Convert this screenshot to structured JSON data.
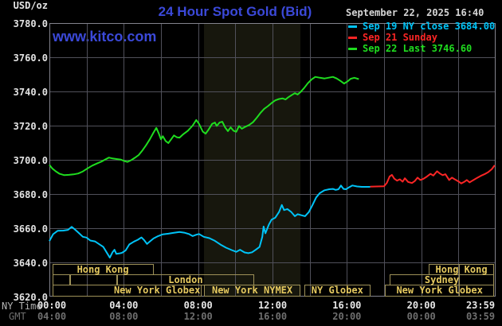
{
  "header": {
    "units_label": "USD/oz",
    "title": "24 Hour Spot Gold (Bid)",
    "timestamp": "September 22, 2025 16:40",
    "watermark": "www.kitco.com"
  },
  "colors": {
    "title_blue": "#3b49d9",
    "sep19_cyan": "#00c3f7",
    "sep21_red": "#fa2525",
    "sep22_green": "#1fdd1f",
    "session_border_khaki": "#9e9158",
    "session_label_gold": "#e5c95f",
    "grid_gray": "#50505a",
    "band_shade": "#17170d"
  },
  "axes": {
    "y_ticks": [
      "3780.0",
      "3760.0",
      "3740.0",
      "3720.0",
      "3700.0",
      "3680.0",
      "3660.0",
      "3640.0",
      "3620.0"
    ],
    "x_row1_name": "NY Time",
    "x_row2_name": "GMT",
    "x_row1_ticks": [
      "00:00",
      "04:00",
      "08:00",
      "12:00",
      "16:00",
      "20:00",
      "23:59"
    ],
    "x_row2_ticks": [
      "04:00",
      "08:00",
      "12:00",
      "16:00",
      "20:00",
      "00:00",
      "03:59"
    ]
  },
  "sessions": {
    "rows": [
      [
        {
          "label": "Hong Kong",
          "from": 0.15,
          "to": 5.6
        },
        {
          "label": "Hong Kong",
          "from": 20.4,
          "to": 23.92,
          "divider": 22
        }
      ],
      [
        {
          "label": "",
          "from": 0.15,
          "to": 1.1
        },
        {
          "label": "",
          "from": 1.1,
          "to": 3.65
        },
        {
          "label": "London",
          "from": 3.65,
          "to": 11.0
        },
        {
          "label": "Sydney",
          "from": 18.3,
          "to": 23.92,
          "divider": 22
        }
      ],
      [
        {
          "label": "New York Globex",
          "from": 0.15,
          "to": 8.2
        },
        {
          "label": "New York NYMEX",
          "from": 8.3,
          "to": 13.52
        },
        {
          "label": "NY Globex",
          "from": 13.7,
          "to": 17.27
        },
        {
          "label": "New York Globex",
          "from": 18.05,
          "to": 23.92,
          "divider": 22
        }
      ]
    ]
  },
  "chart_data": {
    "type": "line",
    "title": "24 Hour Spot Gold (Bid)",
    "xlabel": "NY Time / GMT (hours, 00:00-23:59)",
    "ylabel": "USD/oz",
    "y_axis": {
      "min": 3620,
      "max": 3780,
      "tick_step": 20
    },
    "x_axis": {
      "min_hour": 0,
      "max_hour": 24,
      "gridline_every_hours": 2,
      "label_every_hours": 4
    },
    "nymex_session_band": {
      "start_hour": 8.3,
      "end_hour": 13.52
    },
    "series": [
      {
        "name": "Sep 19 NY close 3684.00",
        "color": "#00c3f7",
        "points": [
          [
            0,
            3652.5
          ],
          [
            0.2,
            3656.5
          ],
          [
            0.45,
            3658.5
          ],
          [
            0.75,
            3658.6
          ],
          [
            1.0,
            3659
          ],
          [
            1.2,
            3660.8
          ],
          [
            1.35,
            3659.5
          ],
          [
            1.55,
            3657.5
          ],
          [
            1.8,
            3655
          ],
          [
            2.0,
            3654.5
          ],
          [
            2.2,
            3652.8
          ],
          [
            2.45,
            3652.3
          ],
          [
            2.7,
            3650.5
          ],
          [
            2.9,
            3649
          ],
          [
            3.1,
            3645.5
          ],
          [
            3.25,
            3642.8
          ],
          [
            3.4,
            3646
          ],
          [
            3.5,
            3647.4
          ],
          [
            3.6,
            3645
          ],
          [
            3.75,
            3645.2
          ],
          [
            3.9,
            3645.6
          ],
          [
            4.1,
            3647
          ],
          [
            4.3,
            3650.5
          ],
          [
            4.55,
            3652.2
          ],
          [
            4.75,
            3653.2
          ],
          [
            4.95,
            3654.6
          ],
          [
            5.1,
            3653
          ],
          [
            5.25,
            3650.8
          ],
          [
            5.4,
            3652.2
          ],
          [
            5.6,
            3654
          ],
          [
            5.85,
            3655.4
          ],
          [
            6.1,
            3656.4
          ],
          [
            6.4,
            3656.8
          ],
          [
            6.7,
            3657.3
          ],
          [
            7.0,
            3657.8
          ],
          [
            7.25,
            3657.4
          ],
          [
            7.5,
            3656.6
          ],
          [
            7.7,
            3655.4
          ],
          [
            7.9,
            3656.2
          ],
          [
            8.05,
            3656.6
          ],
          [
            8.3,
            3655
          ],
          [
            8.6,
            3654.2
          ],
          [
            8.9,
            3652.6
          ],
          [
            9.2,
            3650.4
          ],
          [
            9.5,
            3648.6
          ],
          [
            9.8,
            3647.2
          ],
          [
            10.05,
            3646.2
          ],
          [
            10.25,
            3647.4
          ],
          [
            10.5,
            3645.8
          ],
          [
            10.7,
            3645.4
          ],
          [
            10.9,
            3645.9
          ],
          [
            11.1,
            3647.4
          ],
          [
            11.3,
            3649
          ],
          [
            11.45,
            3655
          ],
          [
            11.52,
            3661
          ],
          [
            11.62,
            3657
          ],
          [
            11.8,
            3662
          ],
          [
            11.95,
            3665
          ],
          [
            12.15,
            3666.2
          ],
          [
            12.35,
            3669.5
          ],
          [
            12.5,
            3673.6
          ],
          [
            12.62,
            3670.6
          ],
          [
            12.8,
            3671.2
          ],
          [
            13.0,
            3669.6
          ],
          [
            13.2,
            3667
          ],
          [
            13.35,
            3668.2
          ],
          [
            13.55,
            3667.6
          ],
          [
            13.75,
            3667
          ],
          [
            13.95,
            3669.4
          ],
          [
            14.15,
            3673.6
          ],
          [
            14.35,
            3678
          ],
          [
            14.55,
            3680.6
          ],
          [
            14.8,
            3682.2
          ],
          [
            15.05,
            3682.8
          ],
          [
            15.25,
            3683
          ],
          [
            15.4,
            3682.4
          ],
          [
            15.55,
            3682.8
          ],
          [
            15.68,
            3685
          ],
          [
            15.82,
            3683
          ],
          [
            15.95,
            3682.8
          ],
          [
            16.1,
            3683.8
          ],
          [
            16.3,
            3685
          ],
          [
            16.55,
            3684.4
          ],
          [
            16.8,
            3684.2
          ],
          [
            17.25,
            3684.2
          ]
        ]
      },
      {
        "name": "Sep 21 Sunday",
        "color": "#fa2525",
        "points": [
          [
            17.25,
            3684.3
          ],
          [
            17.6,
            3684.4
          ],
          [
            18.0,
            3684.5
          ],
          [
            18.15,
            3686.5
          ],
          [
            18.3,
            3690.3
          ],
          [
            18.42,
            3691.2
          ],
          [
            18.55,
            3689
          ],
          [
            18.7,
            3687.8
          ],
          [
            18.85,
            3688.6
          ],
          [
            19.0,
            3687.2
          ],
          [
            19.12,
            3689.2
          ],
          [
            19.3,
            3687
          ],
          [
            19.5,
            3686.4
          ],
          [
            19.65,
            3687.6
          ],
          [
            19.8,
            3689.6
          ],
          [
            19.95,
            3688.2
          ],
          [
            20.1,
            3688.8
          ],
          [
            20.3,
            3690.2
          ],
          [
            20.5,
            3691.8
          ],
          [
            20.65,
            3690.8
          ],
          [
            20.85,
            3693.3
          ],
          [
            21.0,
            3692
          ],
          [
            21.15,
            3691
          ],
          [
            21.3,
            3691.6
          ],
          [
            21.5,
            3688.2
          ],
          [
            21.65,
            3689.6
          ],
          [
            21.8,
            3688.6
          ],
          [
            22.0,
            3687.4
          ],
          [
            22.15,
            3686.2
          ],
          [
            22.3,
            3687
          ],
          [
            22.45,
            3688.2
          ],
          [
            22.6,
            3686.8
          ],
          [
            22.75,
            3687.8
          ],
          [
            23.0,
            3689.4
          ],
          [
            23.2,
            3690.6
          ],
          [
            23.4,
            3691.6
          ],
          [
            23.6,
            3692.8
          ],
          [
            23.8,
            3694.6
          ],
          [
            23.95,
            3696.8
          ]
        ]
      },
      {
        "name": "Sep 22 Last 3746.60",
        "color": "#1fdd1f",
        "points": [
          [
            0,
            3697
          ],
          [
            0.15,
            3695
          ],
          [
            0.35,
            3693.2
          ],
          [
            0.55,
            3691.8
          ],
          [
            0.8,
            3691
          ],
          [
            1.05,
            3691.2
          ],
          [
            1.3,
            3691.5
          ],
          [
            1.55,
            3692
          ],
          [
            1.8,
            3693.2
          ],
          [
            2.05,
            3695
          ],
          [
            2.3,
            3696.6
          ],
          [
            2.55,
            3697.8
          ],
          [
            2.8,
            3699
          ],
          [
            3.0,
            3700.2
          ],
          [
            3.2,
            3701.3
          ],
          [
            3.4,
            3700.8
          ],
          [
            3.65,
            3700.4
          ],
          [
            3.85,
            3700.1
          ],
          [
            4.05,
            3699.2
          ],
          [
            4.2,
            3698.8
          ],
          [
            4.4,
            3699.8
          ],
          [
            4.6,
            3701.2
          ],
          [
            4.8,
            3702.8
          ],
          [
            5.0,
            3705.5
          ],
          [
            5.2,
            3708.5
          ],
          [
            5.4,
            3712
          ],
          [
            5.6,
            3716
          ],
          [
            5.75,
            3718.7
          ],
          [
            5.88,
            3715.5
          ],
          [
            6.0,
            3712
          ],
          [
            6.1,
            3713.8
          ],
          [
            6.25,
            3711
          ],
          [
            6.4,
            3709.8
          ],
          [
            6.55,
            3712
          ],
          [
            6.7,
            3714.3
          ],
          [
            6.85,
            3713.2
          ],
          [
            7.0,
            3713
          ],
          [
            7.2,
            3715
          ],
          [
            7.45,
            3717
          ],
          [
            7.7,
            3720
          ],
          [
            7.9,
            3723.3
          ],
          [
            8.05,
            3721
          ],
          [
            8.25,
            3716.5
          ],
          [
            8.4,
            3715.3
          ],
          [
            8.55,
            3717.5
          ],
          [
            8.75,
            3721
          ],
          [
            8.9,
            3721.8
          ],
          [
            9.0,
            3719.8
          ],
          [
            9.15,
            3721.8
          ],
          [
            9.3,
            3722.3
          ],
          [
            9.45,
            3719
          ],
          [
            9.6,
            3716.8
          ],
          [
            9.75,
            3719
          ],
          [
            9.9,
            3717
          ],
          [
            10.05,
            3716.4
          ],
          [
            10.2,
            3719.8
          ],
          [
            10.35,
            3718.2
          ],
          [
            10.55,
            3719.4
          ],
          [
            10.75,
            3720.4
          ],
          [
            10.95,
            3722
          ],
          [
            11.15,
            3724.6
          ],
          [
            11.35,
            3727.4
          ],
          [
            11.55,
            3729.8
          ],
          [
            11.75,
            3731.4
          ],
          [
            11.95,
            3733.2
          ],
          [
            12.15,
            3734.8
          ],
          [
            12.35,
            3735.6
          ],
          [
            12.55,
            3735.9
          ],
          [
            12.7,
            3735.3
          ],
          [
            12.85,
            3736.6
          ],
          [
            13.05,
            3738
          ],
          [
            13.2,
            3739
          ],
          [
            13.35,
            3738.2
          ],
          [
            13.5,
            3739.6
          ],
          [
            13.7,
            3742
          ],
          [
            13.9,
            3744.8
          ],
          [
            14.1,
            3747
          ],
          [
            14.3,
            3748.5
          ],
          [
            14.55,
            3748
          ],
          [
            14.8,
            3747.6
          ],
          [
            15.0,
            3748
          ],
          [
            15.25,
            3748.5
          ],
          [
            15.45,
            3747.6
          ],
          [
            15.65,
            3746.2
          ],
          [
            15.85,
            3744.6
          ],
          [
            16.05,
            3746
          ],
          [
            16.2,
            3747.4
          ],
          [
            16.4,
            3748
          ],
          [
            16.64,
            3747.2
          ]
        ]
      }
    ]
  }
}
